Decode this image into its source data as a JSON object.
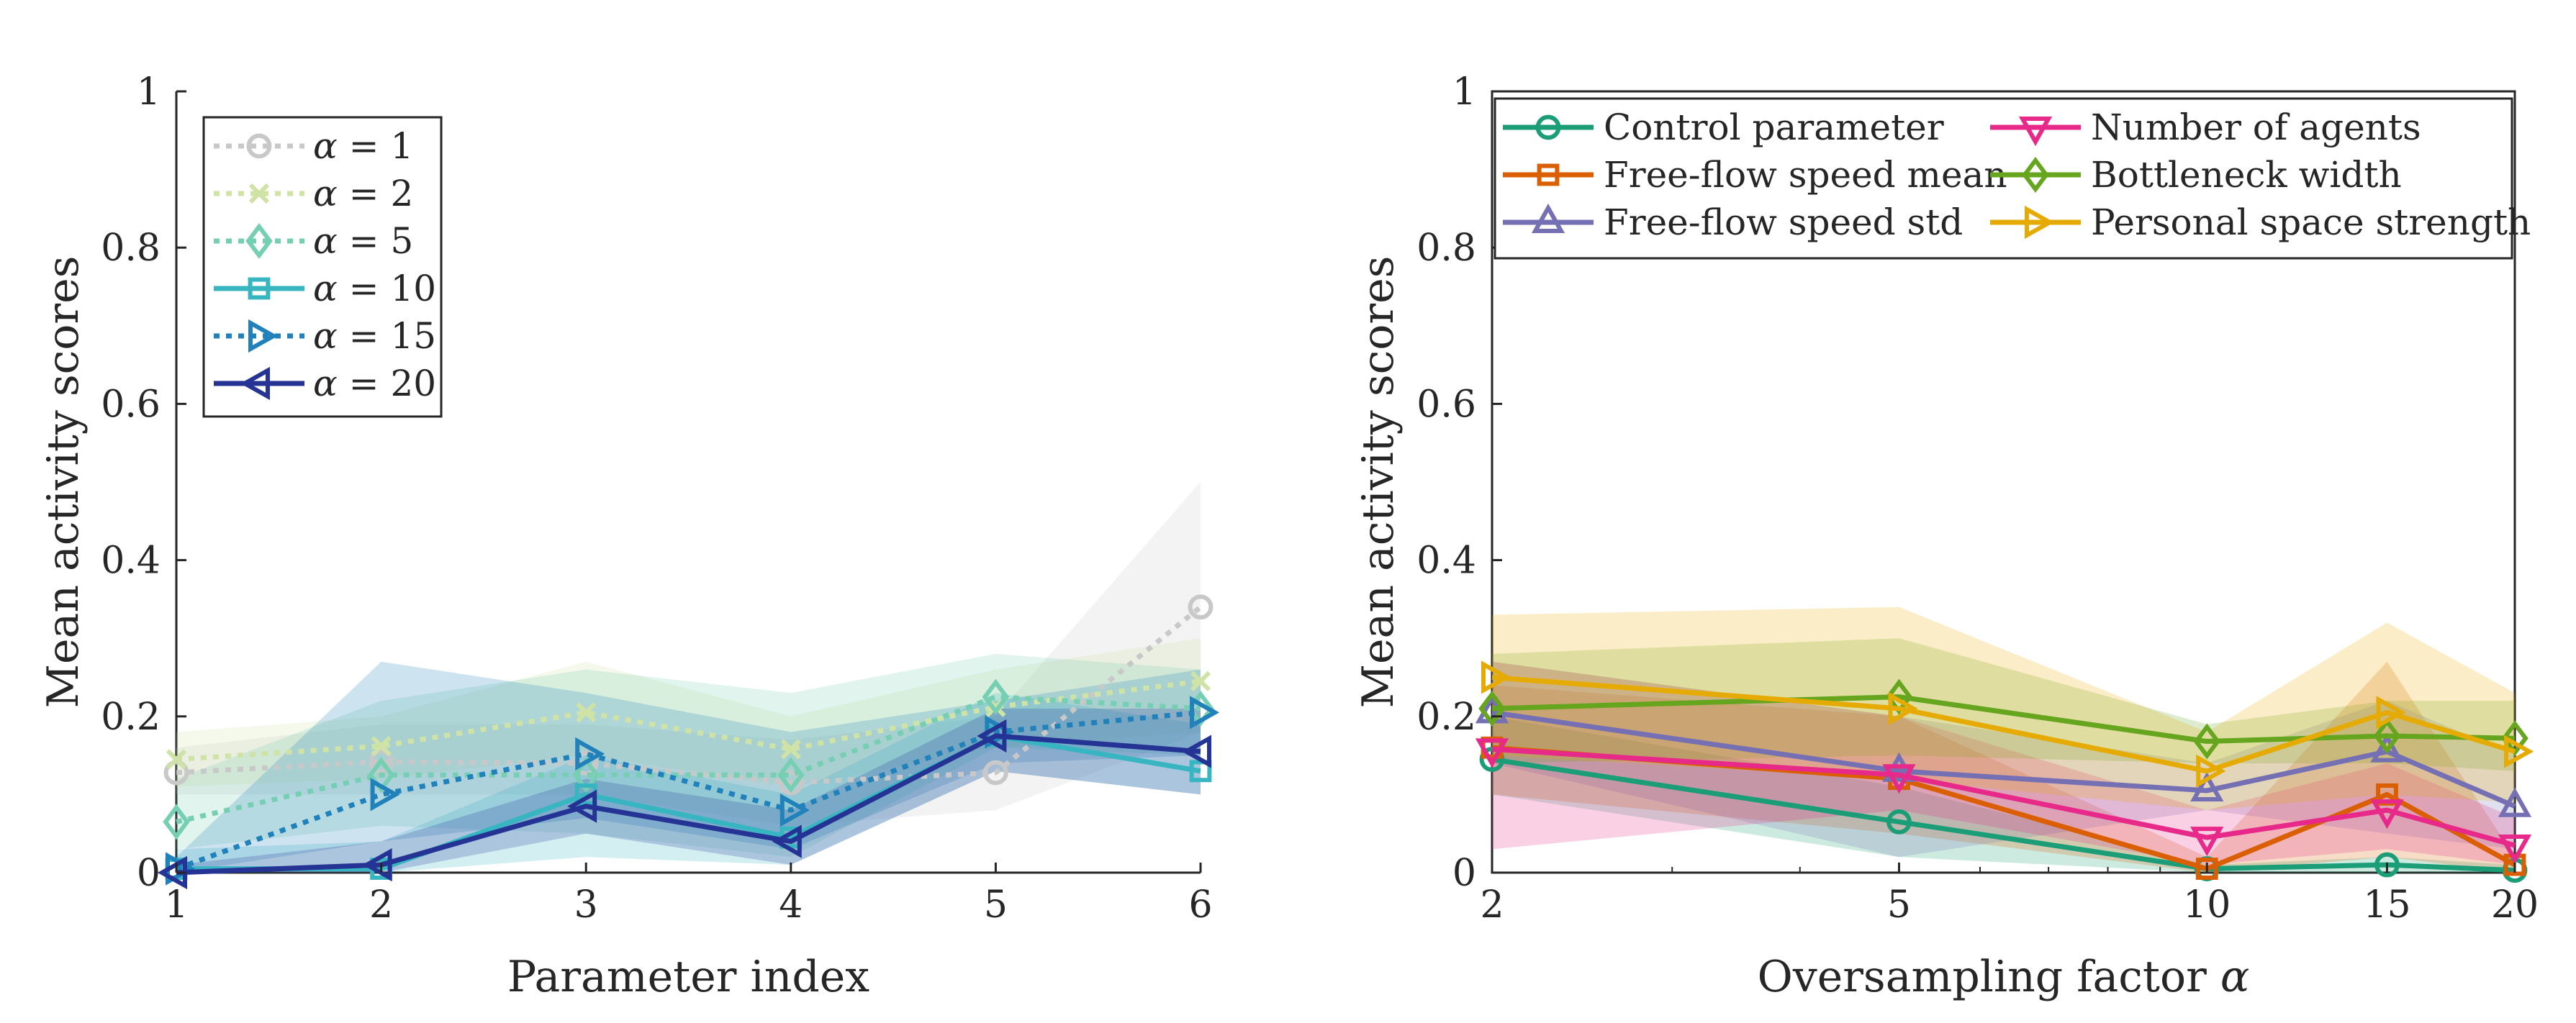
{
  "chart_data": [
    {
      "type": "line",
      "title": "",
      "xlabel": "Parameter index",
      "ylabel": "Mean activity scores",
      "x": [
        1,
        2,
        3,
        4,
        5,
        6
      ],
      "xlim": [
        1,
        6
      ],
      "ylim": [
        0,
        1
      ],
      "xticks": [
        1,
        2,
        3,
        4,
        5,
        6
      ],
      "yticks": [
        0,
        0.2,
        0.4,
        0.6,
        0.8,
        1
      ],
      "ytick_labels": [
        "0",
        "0.2",
        "0.4",
        "0.6",
        "0.8",
        "1"
      ],
      "grid": false,
      "legend_position": "top-left",
      "series": [
        {
          "name": "α = 1",
          "alpha": "1",
          "color": "#c8c8c8",
          "dash": "dotted",
          "marker": "circle",
          "values": [
            0.128,
            0.142,
            0.14,
            0.115,
            0.128,
            0.34
          ],
          "band_low": [
            0.1,
            0.1,
            0.1,
            0.06,
            0.08,
            0.18
          ],
          "band_high": [
            0.16,
            0.19,
            0.19,
            0.17,
            0.2,
            0.5
          ]
        },
        {
          "name": "α = 2",
          "alpha": "2",
          "color": "#cfe3a6",
          "dash": "dotted",
          "marker": "x",
          "values": [
            0.145,
            0.162,
            0.205,
            0.158,
            0.212,
            0.245
          ],
          "band_low": [
            0.11,
            0.12,
            0.15,
            0.11,
            0.16,
            0.18
          ],
          "band_high": [
            0.18,
            0.2,
            0.27,
            0.2,
            0.26,
            0.3
          ]
        },
        {
          "name": "α = 5",
          "alpha": "5",
          "color": "#76cfb2",
          "dash": "dotted",
          "marker": "diamond",
          "values": [
            0.065,
            0.125,
            0.125,
            0.125,
            0.225,
            0.21
          ],
          "band_low": [
            0.03,
            0.06,
            0.05,
            0.02,
            0.16,
            0.15
          ],
          "band_high": [
            0.12,
            0.22,
            0.26,
            0.23,
            0.28,
            0.26
          ]
        },
        {
          "name": "α = 10",
          "alpha": "10",
          "color": "#37b6c2",
          "dash": "solid",
          "marker": "square",
          "values": [
            0.005,
            0.005,
            0.1,
            0.045,
            0.175,
            0.13
          ],
          "band_low": [
            0,
            0,
            0.02,
            0.01,
            0.13,
            0.1
          ],
          "band_high": [
            0.03,
            0.04,
            0.15,
            0.1,
            0.23,
            0.19
          ]
        },
        {
          "name": "α = 15",
          "alpha": "15",
          "color": "#2181bb",
          "dash": "dotted",
          "marker": "triangle-right",
          "values": [
            0.005,
            0.1,
            0.152,
            0.08,
            0.18,
            0.205
          ],
          "band_low": [
            0,
            0.04,
            0.07,
            0.03,
            0.14,
            0.15
          ],
          "band_high": [
            0.02,
            0.27,
            0.23,
            0.18,
            0.22,
            0.26
          ]
        },
        {
          "name": "α = 20",
          "alpha": "20",
          "color": "#253494",
          "dash": "solid",
          "marker": "triangle-left",
          "values": [
            0.0,
            0.01,
            0.085,
            0.04,
            0.175,
            0.155
          ],
          "band_low": [
            0,
            0,
            0.05,
            0.01,
            0.13,
            0.1
          ],
          "band_high": [
            0.01,
            0.04,
            0.12,
            0.08,
            0.21,
            0.21
          ]
        }
      ]
    },
    {
      "type": "line",
      "title": "",
      "xlabel": "Oversampling factor α",
      "xlabel_main": "Oversampling factor",
      "xlabel_symbol": "α",
      "ylabel": "Mean activity scores",
      "x": [
        2,
        5,
        10,
        15,
        20
      ],
      "xscale": "log",
      "xlim": [
        2,
        20
      ],
      "ylim": [
        0,
        1
      ],
      "xticks": [
        2,
        5,
        10,
        15,
        20
      ],
      "yticks": [
        0,
        0.2,
        0.4,
        0.6,
        0.8,
        1
      ],
      "ytick_labels": [
        "0",
        "0.2",
        "0.4",
        "0.6",
        "0.8",
        "1"
      ],
      "grid": false,
      "legend_position": "top",
      "series": [
        {
          "name": "Control parameter",
          "color": "#1b9e77",
          "marker": "circle",
          "values": [
            0.145,
            0.065,
            0.005,
            0.01,
            0.003
          ],
          "band_low": [
            0.1,
            0.02,
            0,
            0,
            0
          ],
          "band_high": [
            0.2,
            0.11,
            0.01,
            0.02,
            0.01
          ]
        },
        {
          "name": "Free-flow speed mean",
          "color": "#d95f02",
          "marker": "square",
          "values": [
            0.16,
            0.12,
            0.005,
            0.1,
            0.01
          ],
          "band_low": [
            0.1,
            0.05,
            0,
            0.02,
            0
          ],
          "band_high": [
            0.24,
            0.2,
            0.02,
            0.27,
            0.02
          ]
        },
        {
          "name": "Free-flow speed std",
          "color": "#7570b3",
          "marker": "triangle-up",
          "values": [
            0.205,
            0.13,
            0.105,
            0.155,
            0.085
          ],
          "band_low": [
            0.14,
            0.02,
            0.08,
            0.05,
            0.03
          ],
          "band_high": [
            0.27,
            0.2,
            0.14,
            0.22,
            0.15
          ]
        },
        {
          "name": "Number of agents",
          "color": "#e7298a",
          "marker": "triangle-down",
          "values": [
            0.158,
            0.125,
            0.045,
            0.08,
            0.035
          ],
          "band_low": [
            0.03,
            0.08,
            0.01,
            0.03,
            0.01
          ],
          "band_high": [
            0.27,
            0.2,
            0.08,
            0.14,
            0.07
          ]
        },
        {
          "name": "Bottleneck width",
          "color": "#66a61e",
          "marker": "diamond",
          "values": [
            0.21,
            0.225,
            0.168,
            0.175,
            0.172
          ],
          "band_low": [
            0.14,
            0.15,
            0.14,
            0.14,
            0.13
          ],
          "band_high": [
            0.28,
            0.3,
            0.19,
            0.22,
            0.22
          ]
        },
        {
          "name": "Personal space strength",
          "color": "#e6ab02",
          "marker": "triangle-right",
          "values": [
            0.25,
            0.21,
            0.13,
            0.205,
            0.155
          ],
          "band_low": [
            0.15,
            0.12,
            0.08,
            0.1,
            0.09
          ],
          "band_high": [
            0.33,
            0.34,
            0.18,
            0.32,
            0.23
          ]
        }
      ]
    }
  ]
}
